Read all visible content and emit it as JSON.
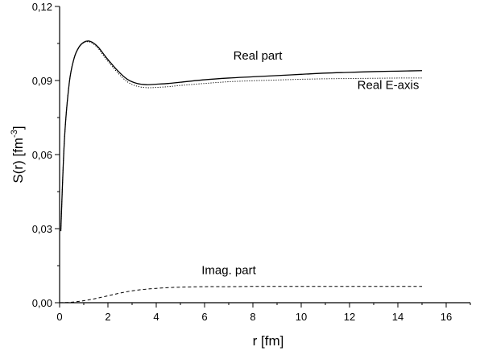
{
  "chart_data": {
    "type": "line",
    "title": "",
    "xlabel": "r [fm]",
    "ylabel_main": "S(r) [fm",
    "ylabel_sup": "-3",
    "ylabel_close": "]",
    "xlim": [
      0,
      17
    ],
    "ylim": [
      0,
      0.12
    ],
    "xticks": [
      0,
      2,
      4,
      6,
      8,
      10,
      12,
      14,
      16
    ],
    "xtick_labels": [
      "0",
      "2",
      "4",
      "6",
      "8",
      "10",
      "12",
      "14",
      "16"
    ],
    "yticks": [
      0,
      0.03,
      0.06,
      0.09,
      0.12
    ],
    "ytick_labels": [
      "0,00",
      "0,03",
      "0,06",
      "0,09",
      "0,12"
    ],
    "grid": false,
    "series": [
      {
        "name": "Real part",
        "style": "solid",
        "x": [
          0.05,
          0.2,
          0.4,
          0.6,
          0.8,
          1.0,
          1.2,
          1.4,
          1.6,
          1.8,
          2.0,
          2.4,
          2.8,
          3.2,
          3.6,
          4.0,
          4.5,
          5.0,
          6.0,
          7.0,
          8.0,
          9.0,
          10.0,
          11.0,
          12.0,
          13.0,
          14.0,
          15.0
        ],
        "y": [
          0.029,
          0.066,
          0.089,
          0.099,
          0.1035,
          0.1055,
          0.106,
          0.1052,
          0.1035,
          0.101,
          0.0985,
          0.094,
          0.0905,
          0.0888,
          0.0883,
          0.0885,
          0.0888,
          0.0893,
          0.0903,
          0.091,
          0.0915,
          0.092,
          0.0925,
          0.093,
          0.0933,
          0.0936,
          0.0938,
          0.094
        ]
      },
      {
        "name": "Real E-axis",
        "style": "dotted",
        "x": [
          0.05,
          0.2,
          0.4,
          0.6,
          0.8,
          1.0,
          1.2,
          1.4,
          1.6,
          1.8,
          2.0,
          2.4,
          2.8,
          3.2,
          3.6,
          4.0,
          4.5,
          5.0,
          6.0,
          7.0,
          8.0,
          9.0,
          10.0,
          11.0,
          12.0,
          13.0,
          14.0,
          15.0
        ],
        "y": [
          0.029,
          0.066,
          0.089,
          0.099,
          0.1033,
          0.1053,
          0.1057,
          0.1048,
          0.103,
          0.1003,
          0.0978,
          0.0932,
          0.0895,
          0.0877,
          0.0871,
          0.0872,
          0.0875,
          0.088,
          0.0888,
          0.0895,
          0.0899,
          0.0902,
          0.0905,
          0.0907,
          0.0908,
          0.0909,
          0.091,
          0.091
        ]
      },
      {
        "name": "Imag. part",
        "style": "dashed",
        "x": [
          0.0,
          0.5,
          1.0,
          1.5,
          2.0,
          2.5,
          3.0,
          3.5,
          4.0,
          4.5,
          5.0,
          6.0,
          7.0,
          8.0,
          9.0,
          10.0,
          11.0,
          12.0,
          13.0,
          14.0,
          15.0
        ],
        "y": [
          0.0,
          0.0002,
          0.0008,
          0.0017,
          0.0028,
          0.0039,
          0.0048,
          0.0054,
          0.0058,
          0.0061,
          0.0063,
          0.0065,
          0.0065,
          0.0066,
          0.0066,
          0.0066,
          0.0066,
          0.0066,
          0.0066,
          0.0066,
          0.0066
        ]
      }
    ],
    "annotations": [
      {
        "text": "Real part",
        "x": 8.2,
        "y": 0.0985
      },
      {
        "text": "Real E-axis",
        "x": 13.6,
        "y": 0.0865
      },
      {
        "text": "Imag. part",
        "x": 7.0,
        "y": 0.0115
      }
    ],
    "colors": {
      "line": "#000000",
      "axis": "#000000"
    }
  }
}
